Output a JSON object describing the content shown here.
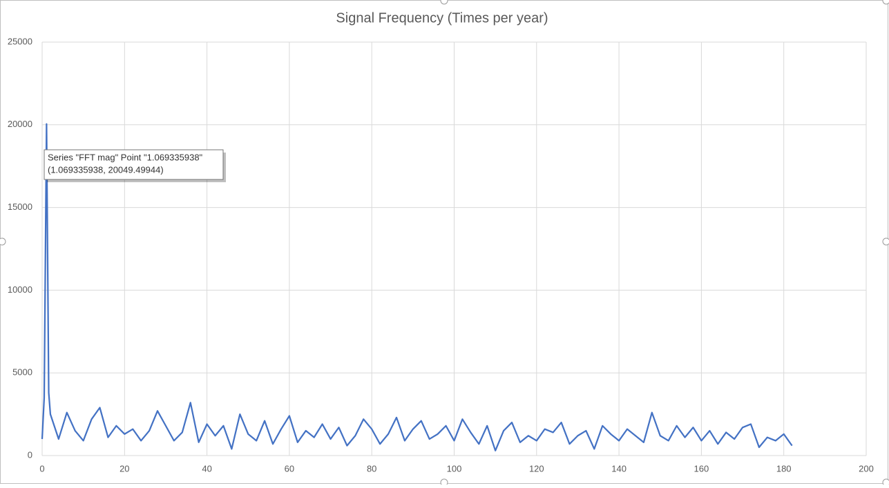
{
  "chart_data": {
    "type": "line",
    "title": "Signal Frequency (Times per year)",
    "series": [
      {
        "name": "FFT mag",
        "color": "#4472c4",
        "x": [
          0,
          0.5,
          1.069335938,
          1.6,
          2,
          4,
          6,
          8,
          10,
          12,
          14,
          16,
          18,
          20,
          22,
          24,
          26,
          28,
          30,
          32,
          34,
          36,
          38,
          40,
          42,
          44,
          46,
          48,
          50,
          52,
          54,
          56,
          58,
          60,
          62,
          64,
          66,
          68,
          70,
          72,
          74,
          76,
          78,
          80,
          82,
          84,
          86,
          88,
          90,
          92,
          94,
          96,
          98,
          100,
          102,
          104,
          106,
          108,
          110,
          112,
          114,
          116,
          118,
          120,
          122,
          124,
          126,
          128,
          130,
          132,
          134,
          136,
          138,
          140,
          142,
          144,
          146,
          148,
          150,
          152,
          154,
          156,
          158,
          160,
          162,
          164,
          166,
          168,
          170,
          172,
          174,
          176,
          178,
          180,
          182
        ],
        "values": [
          1000,
          3500,
          20049.49944,
          3800,
          2500,
          1000,
          2600,
          1500,
          900,
          2200,
          2900,
          1100,
          1800,
          1300,
          1600,
          900,
          1500,
          2700,
          1800,
          900,
          1400,
          3200,
          800,
          1900,
          1200,
          1800,
          400,
          2500,
          1300,
          900,
          2100,
          700,
          1600,
          2400,
          800,
          1500,
          1100,
          1900,
          1000,
          1700,
          600,
          1200,
          2200,
          1600,
          700,
          1300,
          2300,
          900,
          1600,
          2100,
          1000,
          1300,
          1800,
          900,
          2200,
          1400,
          700,
          1800,
          300,
          1500,
          2000,
          800,
          1200,
          900,
          1600,
          1400,
          2000,
          700,
          1200,
          1500,
          400,
          1800,
          1300,
          900,
          1600,
          1200,
          800,
          2600,
          1200,
          900,
          1800,
          1100,
          1700,
          900,
          1500,
          700,
          1400,
          1000,
          1700,
          1900,
          500,
          1100,
          900,
          1300,
          600
        ]
      }
    ],
    "xlim": [
      0,
      200
    ],
    "xticks": [
      0,
      20,
      40,
      60,
      80,
      100,
      120,
      140,
      160,
      180,
      200
    ],
    "ylim": [
      0,
      25000
    ],
    "yticks": [
      0,
      5000,
      10000,
      15000,
      20000,
      25000
    ],
    "grid": true,
    "tooltip": [
      "Series \"FFT mag\" Point \"1.069335938\"",
      "(1.069335938, 20049.49944)"
    ]
  }
}
